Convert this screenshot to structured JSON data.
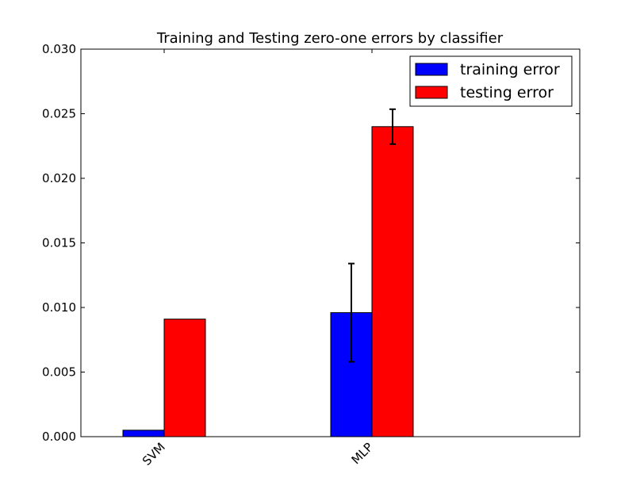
{
  "chart_data": {
    "type": "bar",
    "title": "Training and Testing zero-one errors by classifier",
    "xlabel": "",
    "ylabel": "",
    "categories": [
      "SVM",
      "MLP"
    ],
    "series": [
      {
        "name": "training error",
        "color": "#0000ff",
        "values": [
          0.0005,
          0.0096
        ],
        "errors": [
          0,
          0.0038
        ]
      },
      {
        "name": "testing error",
        "color": "#ff0000",
        "values": [
          0.0091,
          0.024
        ],
        "errors": [
          0,
          0.00135
        ]
      }
    ],
    "ylim": [
      0,
      0.03
    ],
    "yticks": [
      "0.000",
      "0.005",
      "0.010",
      "0.015",
      "0.020",
      "0.025",
      "0.030"
    ],
    "legend": "top-right",
    "grid": false
  }
}
